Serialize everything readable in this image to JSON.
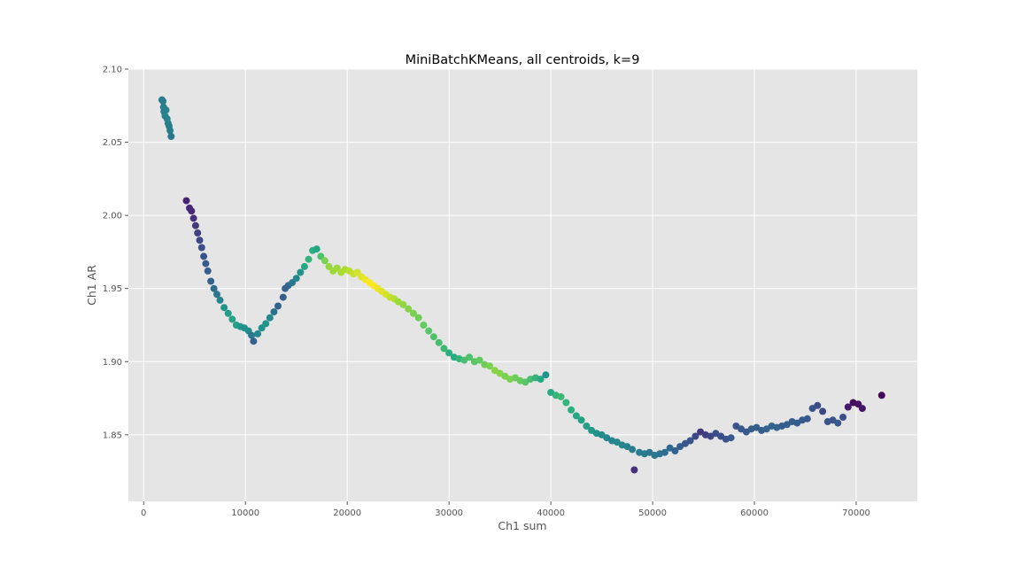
{
  "chart_data": {
    "type": "scatter",
    "title": "MiniBatchKMeans, all centroids, k=9",
    "xlabel": "Ch1 sum",
    "ylabel": "Ch1 AR",
    "xlim": [
      -1500,
      76000
    ],
    "ylim": [
      1.8045,
      2.1
    ],
    "x_ticks": [
      0,
      10000,
      20000,
      30000,
      40000,
      50000,
      60000,
      70000
    ],
    "x_tick_labels": [
      "0",
      "10000",
      "20000",
      "30000",
      "40000",
      "50000",
      "60000",
      "70000"
    ],
    "y_ticks": [
      1.85,
      1.9,
      1.95,
      2.0,
      2.05,
      2.1
    ],
    "y_tick_labels": [
      "1.85",
      "1.90",
      "1.95",
      "2.00",
      "2.05",
      "2.10"
    ],
    "grid": true,
    "colormap": "viridis",
    "points": [
      [
        1800,
        2.079,
        0.42
      ],
      [
        1900,
        2.078,
        0.42
      ],
      [
        1950,
        2.074,
        0.42
      ],
      [
        2000,
        2.071,
        0.42
      ],
      [
        2100,
        2.068,
        0.44
      ],
      [
        2200,
        2.072,
        0.44
      ],
      [
        2300,
        2.066,
        0.44
      ],
      [
        2400,
        2.063,
        0.44
      ],
      [
        2500,
        2.061,
        0.42
      ],
      [
        2600,
        2.058,
        0.42
      ],
      [
        2700,
        2.054,
        0.4
      ],
      [
        4200,
        2.01,
        0.12
      ],
      [
        4500,
        2.005,
        0.14
      ],
      [
        4700,
        2.003,
        0.14
      ],
      [
        4900,
        1.998,
        0.16
      ],
      [
        5100,
        1.993,
        0.18
      ],
      [
        5300,
        1.988,
        0.2
      ],
      [
        5500,
        1.983,
        0.22
      ],
      [
        5700,
        1.978,
        0.24
      ],
      [
        5900,
        1.972,
        0.26
      ],
      [
        6100,
        1.967,
        0.28
      ],
      [
        6300,
        1.962,
        0.3
      ],
      [
        6600,
        1.955,
        0.32
      ],
      [
        6900,
        1.95,
        0.36
      ],
      [
        7200,
        1.946,
        0.4
      ],
      [
        7500,
        1.942,
        0.46
      ],
      [
        7900,
        1.937,
        0.52
      ],
      [
        8300,
        1.933,
        0.55
      ],
      [
        8700,
        1.929,
        0.58
      ],
      [
        9100,
        1.925,
        0.56
      ],
      [
        9500,
        1.924,
        0.52
      ],
      [
        9900,
        1.923,
        0.5
      ],
      [
        10300,
        1.921,
        0.48
      ],
      [
        10600,
        1.918,
        0.4
      ],
      [
        10800,
        1.914,
        0.32
      ],
      [
        11200,
        1.919,
        0.46
      ],
      [
        11600,
        1.923,
        0.5
      ],
      [
        12000,
        1.926,
        0.52
      ],
      [
        12400,
        1.93,
        0.46
      ],
      [
        12800,
        1.934,
        0.38
      ],
      [
        13200,
        1.938,
        0.32
      ],
      [
        13700,
        1.944,
        0.3
      ],
      [
        13900,
        1.95,
        0.32
      ],
      [
        14200,
        1.952,
        0.34
      ],
      [
        14600,
        1.954,
        0.4
      ],
      [
        15000,
        1.957,
        0.46
      ],
      [
        15400,
        1.961,
        0.52
      ],
      [
        15800,
        1.965,
        0.6
      ],
      [
        16200,
        1.97,
        0.66
      ],
      [
        16600,
        1.976,
        0.64
      ],
      [
        17000,
        1.977,
        0.6
      ],
      [
        17400,
        1.972,
        0.72
      ],
      [
        17800,
        1.969,
        0.8
      ],
      [
        18200,
        1.965,
        0.84
      ],
      [
        18600,
        1.962,
        0.86
      ],
      [
        19000,
        1.964,
        0.86
      ],
      [
        19400,
        1.961,
        0.88
      ],
      [
        19800,
        1.963,
        0.88
      ],
      [
        20200,
        1.962,
        0.9
      ],
      [
        20600,
        1.96,
        0.92
      ],
      [
        21000,
        1.961,
        0.94
      ],
      [
        21400,
        1.958,
        0.96
      ],
      [
        21800,
        1.956,
        0.98
      ],
      [
        22200,
        1.954,
        1.0
      ],
      [
        22600,
        1.952,
        1.0
      ],
      [
        23000,
        1.95,
        0.98
      ],
      [
        23400,
        1.948,
        0.96
      ],
      [
        23800,
        1.946,
        0.94
      ],
      [
        24200,
        1.944,
        0.92
      ],
      [
        24600,
        1.943,
        0.9
      ],
      [
        25000,
        1.941,
        0.86
      ],
      [
        25500,
        1.939,
        0.84
      ],
      [
        26000,
        1.936,
        0.82
      ],
      [
        26500,
        1.933,
        0.8
      ],
      [
        27000,
        1.93,
        0.78
      ],
      [
        27500,
        1.925,
        0.76
      ],
      [
        28000,
        1.921,
        0.74
      ],
      [
        28500,
        1.917,
        0.72
      ],
      [
        29000,
        1.913,
        0.7
      ],
      [
        29500,
        1.909,
        0.68
      ],
      [
        30000,
        1.906,
        0.64
      ],
      [
        30500,
        1.903,
        0.62
      ],
      [
        31000,
        1.902,
        0.66
      ],
      [
        31500,
        1.901,
        0.7
      ],
      [
        32000,
        1.903,
        0.72
      ],
      [
        32500,
        1.9,
        0.74
      ],
      [
        33000,
        1.901,
        0.76
      ],
      [
        33500,
        1.898,
        0.78
      ],
      [
        34000,
        1.897,
        0.8
      ],
      [
        34500,
        1.894,
        0.82
      ],
      [
        35000,
        1.892,
        0.82
      ],
      [
        35500,
        1.89,
        0.8
      ],
      [
        36000,
        1.888,
        0.8
      ],
      [
        36500,
        1.889,
        0.78
      ],
      [
        37000,
        1.887,
        0.76
      ],
      [
        37500,
        1.886,
        0.74
      ],
      [
        38000,
        1.888,
        0.7
      ],
      [
        38500,
        1.889,
        0.66
      ],
      [
        39000,
        1.888,
        0.6
      ],
      [
        39500,
        1.891,
        0.5
      ],
      [
        40000,
        1.879,
        0.62
      ],
      [
        40500,
        1.877,
        0.66
      ],
      [
        41000,
        1.876,
        0.68
      ],
      [
        41500,
        1.872,
        0.66
      ],
      [
        42000,
        1.867,
        0.64
      ],
      [
        42500,
        1.863,
        0.6
      ],
      [
        43000,
        1.86,
        0.58
      ],
      [
        43500,
        1.856,
        0.56
      ],
      [
        44000,
        1.853,
        0.54
      ],
      [
        44500,
        1.851,
        0.5
      ],
      [
        45000,
        1.85,
        0.48
      ],
      [
        45500,
        1.848,
        0.46
      ],
      [
        46000,
        1.846,
        0.46
      ],
      [
        46500,
        1.845,
        0.46
      ],
      [
        47000,
        1.843,
        0.46
      ],
      [
        47500,
        1.842,
        0.44
      ],
      [
        48000,
        1.84,
        0.42
      ],
      [
        48200,
        1.826,
        0.16
      ],
      [
        48700,
        1.838,
        0.42
      ],
      [
        49200,
        1.837,
        0.42
      ],
      [
        49700,
        1.838,
        0.4
      ],
      [
        50200,
        1.836,
        0.4
      ],
      [
        50700,
        1.837,
        0.38
      ],
      [
        51200,
        1.838,
        0.36
      ],
      [
        51700,
        1.841,
        0.34
      ],
      [
        52200,
        1.839,
        0.32
      ],
      [
        52700,
        1.842,
        0.3
      ],
      [
        53200,
        1.844,
        0.28
      ],
      [
        53700,
        1.846,
        0.26
      ],
      [
        54200,
        1.849,
        0.22
      ],
      [
        54700,
        1.852,
        0.18
      ],
      [
        55200,
        1.85,
        0.2
      ],
      [
        55700,
        1.849,
        0.22
      ],
      [
        56200,
        1.851,
        0.24
      ],
      [
        56700,
        1.849,
        0.24
      ],
      [
        57200,
        1.847,
        0.26
      ],
      [
        57700,
        1.848,
        0.28
      ],
      [
        58200,
        1.856,
        0.26
      ],
      [
        58700,
        1.854,
        0.28
      ],
      [
        59200,
        1.852,
        0.28
      ],
      [
        59700,
        1.854,
        0.3
      ],
      [
        60200,
        1.855,
        0.3
      ],
      [
        60700,
        1.853,
        0.3
      ],
      [
        61200,
        1.854,
        0.32
      ],
      [
        61700,
        1.856,
        0.32
      ],
      [
        62200,
        1.855,
        0.32
      ],
      [
        62700,
        1.856,
        0.3
      ],
      [
        63200,
        1.857,
        0.3
      ],
      [
        63700,
        1.859,
        0.3
      ],
      [
        64200,
        1.858,
        0.3
      ],
      [
        64700,
        1.86,
        0.28
      ],
      [
        65200,
        1.861,
        0.28
      ],
      [
        65700,
        1.868,
        0.26
      ],
      [
        66200,
        1.87,
        0.24
      ],
      [
        66700,
        1.866,
        0.22
      ],
      [
        67200,
        1.859,
        0.26
      ],
      [
        67700,
        1.86,
        0.26
      ],
      [
        68200,
        1.858,
        0.28
      ],
      [
        68700,
        1.862,
        0.24
      ],
      [
        69200,
        1.869,
        0.08
      ],
      [
        69700,
        1.872,
        0.04
      ],
      [
        70200,
        1.871,
        0.06
      ],
      [
        70600,
        1.868,
        0.08
      ],
      [
        72500,
        1.877,
        0.02
      ]
    ]
  }
}
